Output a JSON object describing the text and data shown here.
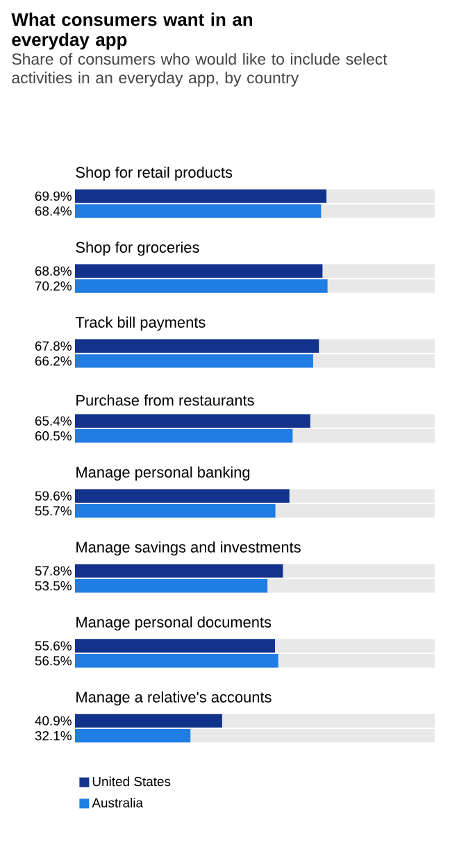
{
  "chart_data": {
    "type": "bar",
    "orientation": "horizontal",
    "title": "What consumers want in an everyday app",
    "subtitle": "Share of consumers who would like to include select activities in an everyday app, by country",
    "categories": [
      "Shop for retail products",
      "Shop for groceries",
      "Track bill payments",
      "Purchase from restaurants",
      "Manage personal banking",
      "Manage savings and investments",
      "Manage personal documents",
      "Manage a relative's accounts"
    ],
    "series": [
      {
        "name": "United States",
        "color": "#12328c",
        "values": [
          69.9,
          68.8,
          67.8,
          65.4,
          59.6,
          57.8,
          55.6,
          40.9
        ],
        "value_labels": [
          "69.9%",
          "68.8%",
          "67.8%",
          "65.4%",
          "59.6%",
          "57.8%",
          "55.6%",
          "40.9%"
        ]
      },
      {
        "name": "Australia",
        "color": "#1f7de3",
        "values": [
          68.4,
          70.2,
          66.2,
          60.5,
          55.7,
          53.5,
          56.5,
          32.1
        ],
        "value_labels": [
          "68.4%",
          "70.2%",
          "66.2%",
          "60.5%",
          "55.7%",
          "53.5%",
          "56.5%",
          "32.1%"
        ]
      }
    ],
    "xlim": [
      0,
      100
    ],
    "tick_labels": "y",
    "legend": "bottom"
  }
}
